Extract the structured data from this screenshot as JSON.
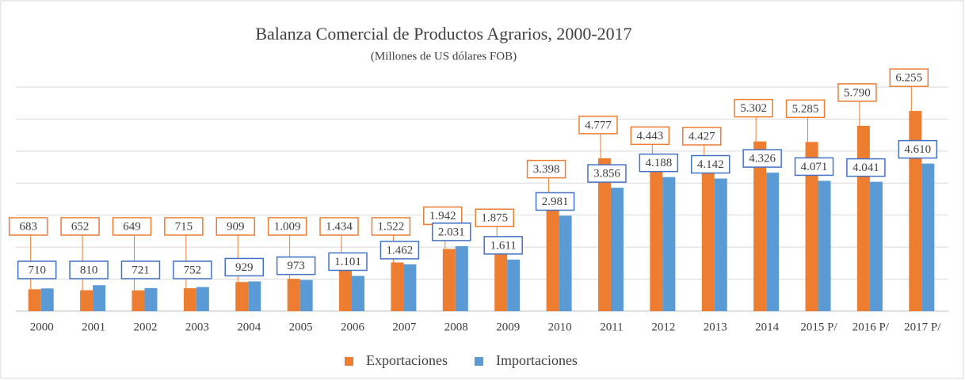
{
  "chart_data": {
    "type": "bar",
    "title": "Balanza Comercial de Productos Agrarios, 2000-2017",
    "subtitle": "(Millones  de US dólares FOB)",
    "categories": [
      "2000",
      "2001",
      "2002",
      "2003",
      "2004",
      "2005",
      "2006",
      "2007",
      "2008",
      "2009",
      "2010",
      "2011",
      "2012",
      "2013",
      "2014",
      "2015 P/",
      "2016 P/",
      "2017 P/"
    ],
    "series": [
      {
        "name": "Exportaciones",
        "color": "#ed7d31",
        "values": [
          683,
          652,
          649,
          715,
          909,
          1009,
          1434,
          1522,
          1942,
          1875,
          3398,
          4777,
          4443,
          4427,
          5302,
          5285,
          5790,
          6255
        ],
        "value_labels": [
          "683",
          "652",
          "649",
          "715",
          "909",
          "1.009",
          "1.434",
          "1.522",
          "1.942",
          "1.875",
          "3.398",
          "4.777",
          "4.443",
          "4.427",
          "5.302",
          "5.285",
          "5.790",
          "6.255"
        ]
      },
      {
        "name": "Importaciones",
        "color": "#5b9bd5",
        "values": [
          710,
          810,
          721,
          752,
          929,
          973,
          1101,
          1462,
          2031,
          1611,
          2981,
          3856,
          4188,
          4142,
          4326,
          4071,
          4041,
          4610
        ],
        "value_labels": [
          "710",
          "810",
          "721",
          "752",
          "929",
          "973",
          "1.101",
          "1.462",
          "2.031",
          "1.611",
          "2.981",
          "3.856",
          "4.188",
          "4.142",
          "4.326",
          "4.071",
          "4.041",
          "4.610"
        ]
      }
    ],
    "ylim": [
      0,
      7000
    ],
    "yticks": [
      0,
      1000,
      2000,
      3000,
      4000,
      5000,
      6000,
      7000
    ],
    "grid": true
  }
}
